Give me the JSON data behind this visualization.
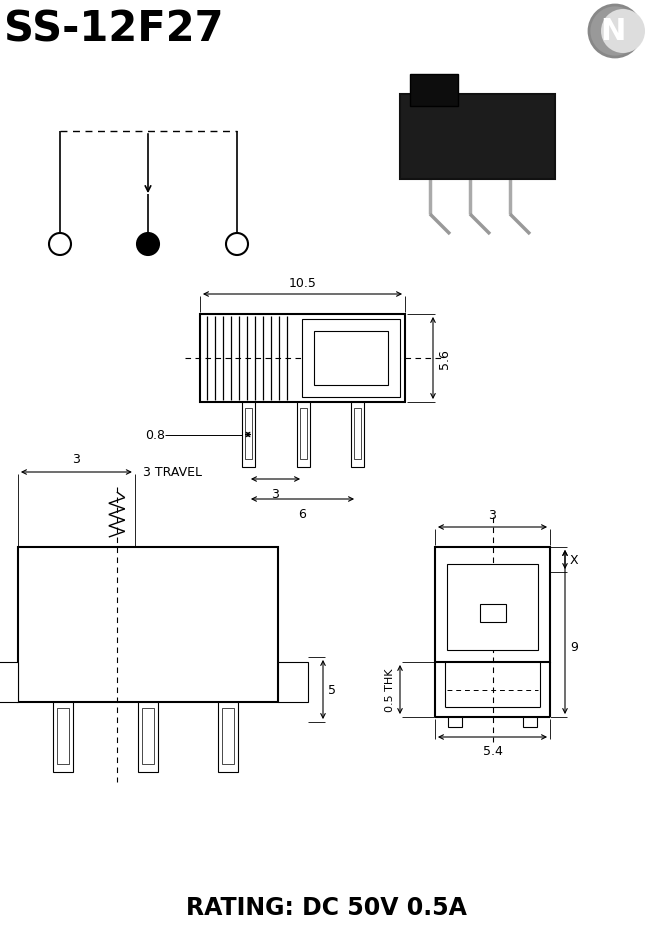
{
  "title": "SS-12F27",
  "rating": "RATING: DC 50V 0.5A",
  "bg_color": "#ffffff",
  "fg_color": "#000000",
  "dim_10_5": "10.5",
  "dim_5_6": "5.6",
  "dim_0_8": "0.8",
  "dim_3a": "3",
  "dim_6": "6",
  "dim_3b": "3",
  "dim_3travel": "3 TRAVEL",
  "dim_5": "5",
  "dim_3c": "3",
  "dim_x": "X",
  "dim_9": "9",
  "dim_5_4": "5.4",
  "dim_0_5thk": "0.5 THK"
}
